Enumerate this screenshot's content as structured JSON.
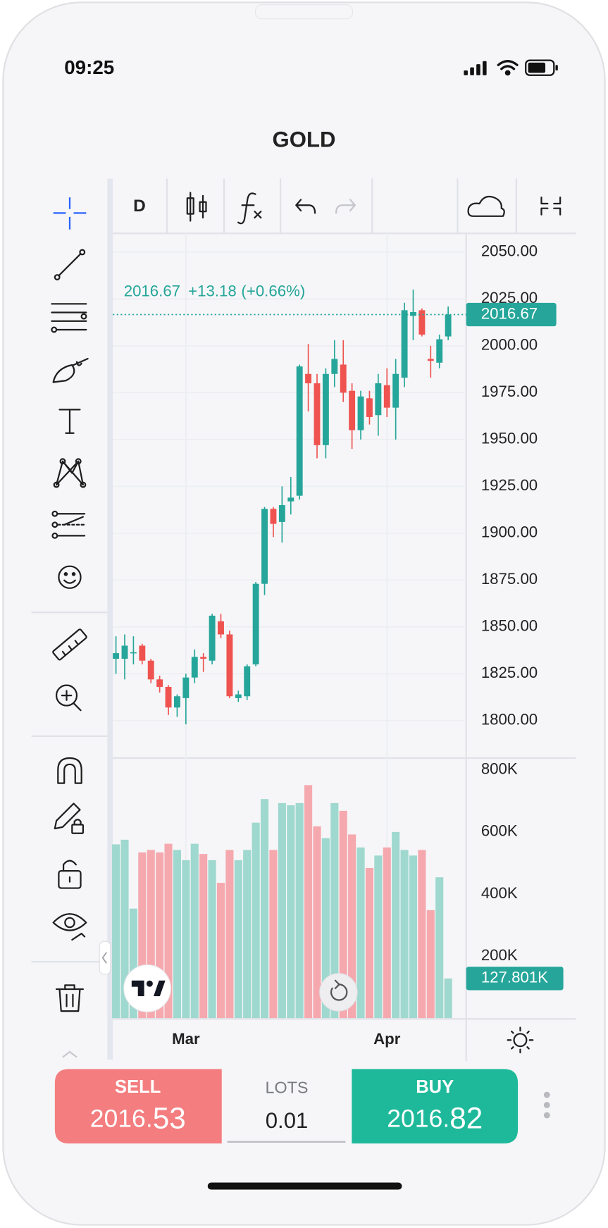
{
  "status_bar": {
    "time": "09:25"
  },
  "header": {
    "title": "GOLD"
  },
  "toolbar": {
    "interval": "D"
  },
  "chart_data": [
    {
      "type": "candlestick",
      "categories": [
        null,
        null,
        null,
        null,
        null,
        null,
        null,
        null,
        "Mar",
        null,
        null,
        null,
        null,
        null,
        null,
        null,
        null,
        null,
        null,
        null,
        null,
        null,
        null,
        null,
        null,
        null,
        null,
        null,
        null,
        null,
        null,
        "Apr",
        null,
        null,
        null,
        null,
        null,
        null,
        null
      ],
      "open": [
        1833,
        1833,
        1836,
        1840,
        1832,
        1822,
        1818,
        1807,
        1812,
        1823,
        1834,
        1832,
        1853,
        1846,
        1812,
        1813,
        1830,
        1873,
        1913,
        1906,
        1917,
        1920,
        1985,
        1980,
        1947,
        1985,
        1990,
        1976,
        1955,
        1972,
        1963,
        1979,
        1967,
        1983,
        2016,
        2019,
        1993,
        1991,
        2005
      ],
      "high": [
        1845,
        1846,
        1845,
        1841,
        1833,
        1824,
        1819,
        1814,
        1825,
        1838,
        1836,
        1857,
        1857,
        1848,
        1816,
        1830,
        1874,
        1914,
        1914,
        1925,
        1930,
        1990,
        2001,
        1985,
        1988,
        2003,
        2003,
        1980,
        1976,
        1976,
        1985,
        1988,
        1993,
        2023,
        2030,
        2020,
        2000,
        2006,
        2021
      ],
      "low": [
        1825,
        1822,
        1830,
        1830,
        1820,
        1815,
        1803,
        1802,
        1798,
        1820,
        1826,
        1830,
        1844,
        1812,
        1810,
        1811,
        1829,
        1867,
        1898,
        1895,
        1910,
        1918,
        1965,
        1940,
        1940,
        1978,
        1970,
        1945,
        1950,
        1958,
        1952,
        1962,
        1950,
        1978,
        2003,
        2005,
        1983,
        1988,
        2003
      ],
      "close": [
        1836,
        1840,
        1836.5,
        1832,
        1822,
        1818,
        1807,
        1813,
        1823,
        1834,
        1833,
        1856,
        1846,
        1813,
        1814,
        1829,
        1873,
        1913,
        1905,
        1915,
        1919,
        1989,
        1980,
        1947,
        1985,
        1993,
        1975,
        1955,
        1973,
        1962,
        1980,
        1967,
        1985,
        2019,
        2018,
        2006,
        1992,
        2003.49,
        2016.67
      ],
      "up_color": "#26a69a",
      "down_color": "#ef5350",
      "change": "+13.18",
      "change_pct": "(+0.66%)",
      "ylim": [
        1780,
        2060
      ],
      "yticks": [
        {
          "value": 1800,
          "label": "1800.00"
        },
        {
          "value": 1825,
          "label": "1825.00"
        },
        {
          "value": 1850,
          "label": "1850.00"
        },
        {
          "value": 1875,
          "label": "1875.00"
        },
        {
          "value": 1900,
          "label": "1900.00"
        },
        {
          "value": 1925,
          "label": "1925.00"
        },
        {
          "value": 1950,
          "label": "1950.00"
        },
        {
          "value": 1975,
          "label": "1975.00"
        },
        {
          "value": 2000,
          "label": "2000.00"
        },
        {
          "value": 2025,
          "label": "2025.00"
        },
        {
          "value": 2050,
          "label": "2050.00"
        }
      ],
      "grid": true
    },
    {
      "type": "bar",
      "values": [
        560000,
        575000,
        353000,
        534000,
        542000,
        534000,
        562000,
        542000,
        509000,
        562000,
        529000,
        509000,
        436000,
        542000,
        509000,
        542000,
        630000,
        706000,
        542000,
        693000,
        686000,
        693000,
        751000,
        618000,
        580000,
        693000,
        668000,
        592000,
        550000,
        484000,
        524000,
        550000,
        600000,
        542000,
        524000,
        542000,
        348000,
        454000,
        127801
      ],
      "value_labels": [
        null,
        null,
        null,
        null,
        null,
        null,
        null,
        null,
        null,
        null,
        null,
        null,
        null,
        null,
        null,
        null,
        null,
        null,
        null,
        null,
        null,
        null,
        null,
        null,
        null,
        null,
        null,
        null,
        null,
        null,
        null,
        null,
        null,
        null,
        null,
        null,
        null,
        null,
        "127.801K"
      ],
      "up_color": "#9fd8cf",
      "down_color": "#f5a9ae",
      "last_color": "#26a69a",
      "ylim": [
        0,
        838000
      ],
      "yticks": [
        {
          "value": 200000,
          "label": "200K"
        },
        {
          "value": 400000,
          "label": "400K"
        },
        {
          "value": 600000,
          "label": "600K"
        },
        {
          "value": 800000,
          "label": "800K"
        }
      ],
      "grid": false
    }
  ],
  "trade_panel": {
    "sell_label": "SELL",
    "sell_price_main": "2016.",
    "sell_price_pips": "53",
    "lots_label": "LOTS",
    "lots": "0.01",
    "buy_label": "BUY",
    "buy_price_main": "2016.",
    "buy_price_pips": "82"
  }
}
